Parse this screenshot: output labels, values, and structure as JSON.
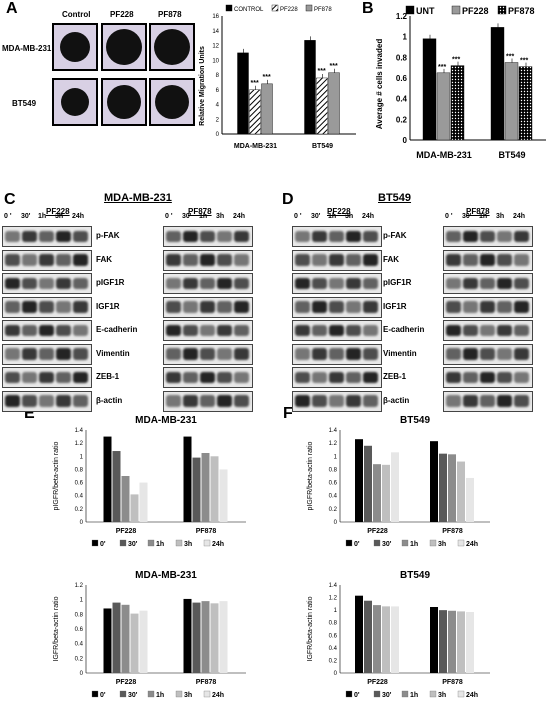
{
  "panels": {
    "A": "A",
    "B": "B",
    "C": "C",
    "D": "D",
    "E": "E",
    "F": "F"
  },
  "panelA": {
    "col_labels": [
      "Control",
      "PF228",
      "PF878"
    ],
    "row_labels": [
      "MDA-MB-231",
      "BT549"
    ]
  },
  "western": {
    "C": {
      "title": "MDA-MB-231",
      "left_drug": "PF228",
      "right_drug": "PF878",
      "time_labels": [
        "0 '",
        "30'",
        "1h",
        "3h",
        "24h"
      ],
      "rows": [
        "p-FAK",
        "FAK",
        "pIGF1R",
        "IGF1R",
        "E-cadherin",
        "Vimentin",
        "ZEB-1",
        "β-actin"
      ]
    },
    "D": {
      "title": "BT549",
      "left_drug": "PF228",
      "right_drug": "PF878",
      "time_labels": [
        "0 '",
        "30'",
        "1h",
        "3h",
        "24h"
      ],
      "rows": [
        "p-FAK",
        "FAK",
        "pIGF1R",
        "IGF1R",
        "E-cadherin",
        "Vimentin",
        "ZEB-1",
        "β-actin"
      ]
    }
  },
  "colors": {
    "c0": "#000000",
    "c1": "#595959",
    "c2": "#8c8c8c",
    "c3": "#bfbfbf",
    "c4": "#e6e6e6",
    "control": "#000000",
    "pf228": "#9a9a9a",
    "pf878": "#9a9a9a"
  },
  "chart_data": [
    {
      "id": "A",
      "type": "bar",
      "categories": [
        "MDA-MB-231",
        "BT549"
      ],
      "series": [
        {
          "name": "CONTROL",
          "values": [
            11,
            12.7
          ]
        },
        {
          "name": "PF228",
          "values": [
            6,
            7.6
          ]
        },
        {
          "name": "PF878",
          "values": [
            6.8,
            8.3
          ]
        }
      ],
      "ylabel": "Relative Migration Units",
      "ylim": [
        0,
        16
      ],
      "ticks": [
        0,
        2,
        4,
        6,
        8,
        10,
        12,
        14,
        16
      ],
      "annotations": [
        "***",
        "***",
        "***",
        "***"
      ],
      "legend": "top"
    },
    {
      "id": "B",
      "type": "bar",
      "categories": [
        "MDA-MB-231",
        "BT549"
      ],
      "series": [
        {
          "name": "UNT",
          "values": [
            0.98,
            1.09
          ]
        },
        {
          "name": "PF228",
          "values": [
            0.65,
            0.75
          ]
        },
        {
          "name": "PF878",
          "values": [
            0.72,
            0.71
          ]
        }
      ],
      "ylabel": "Average # cells invaded",
      "ylim": [
        0,
        1.2
      ],
      "ticks": [
        "0",
        "0.2",
        "0.4",
        "0.6",
        "0.8",
        "1",
        "1.2"
      ],
      "annotations": [
        "***",
        "***",
        "***",
        "***"
      ],
      "legend": "top"
    },
    {
      "id": "E1",
      "type": "bar",
      "title": "MDA-MB-231",
      "categories": [
        "PF228",
        "PF878"
      ],
      "series": [
        {
          "name": "0'",
          "values": [
            1.3,
            1.3
          ]
        },
        {
          "name": "30'",
          "values": [
            1.08,
            0.98
          ]
        },
        {
          "name": "1h",
          "values": [
            0.7,
            1.05
          ]
        },
        {
          "name": "3h",
          "values": [
            0.42,
            1.0
          ]
        },
        {
          "name": "24h",
          "values": [
            0.6,
            0.8
          ]
        }
      ],
      "ylabel": "pIGFR/beta-actin ratio",
      "ylim": [
        0,
        1.4
      ],
      "ticks": [
        "0",
        "0.2",
        "0.4",
        "0.6",
        "0.8",
        "1",
        "1.2",
        "1.4"
      ],
      "legend": "bottom"
    },
    {
      "id": "E2",
      "type": "bar",
      "title": "MDA-MB-231",
      "categories": [
        "PF228",
        "PF878"
      ],
      "series": [
        {
          "name": "0'",
          "values": [
            0.88,
            1.01
          ]
        },
        {
          "name": "30'",
          "values": [
            0.96,
            0.96
          ]
        },
        {
          "name": "1h",
          "values": [
            0.93,
            0.98
          ]
        },
        {
          "name": "3h",
          "values": [
            0.81,
            0.95
          ]
        },
        {
          "name": "24h",
          "values": [
            0.85,
            0.98
          ]
        }
      ],
      "ylabel": "IGFR/beta-actin ratio",
      "ylim": [
        0,
        1.2
      ],
      "ticks": [
        "0",
        "0.2",
        "0.4",
        "0.6",
        "0.8",
        "1",
        "1.2"
      ],
      "legend": "bottom"
    },
    {
      "id": "F1",
      "type": "bar",
      "title": "BT549",
      "categories": [
        "PF228",
        "PF878"
      ],
      "series": [
        {
          "name": "0'",
          "values": [
            1.26,
            1.23
          ]
        },
        {
          "name": "30'",
          "values": [
            1.16,
            1.04
          ]
        },
        {
          "name": "1h",
          "values": [
            0.88,
            1.03
          ]
        },
        {
          "name": "3h",
          "values": [
            0.87,
            0.92
          ]
        },
        {
          "name": "24h",
          "values": [
            1.06,
            0.67
          ]
        }
      ],
      "ylabel": "pIGFR/beta-actin ratio",
      "ylim": [
        0,
        1.4
      ],
      "ticks": [
        "0",
        "0.2",
        "0.4",
        "0.6",
        "0.8",
        "1",
        "1.2",
        "1.4"
      ],
      "legend": "bottom"
    },
    {
      "id": "F2",
      "type": "bar",
      "title": "BT549",
      "categories": [
        "PF228",
        "PF878"
      ],
      "series": [
        {
          "name": "0'",
          "values": [
            1.23,
            1.05
          ]
        },
        {
          "name": "30'",
          "values": [
            1.15,
            1.0
          ]
        },
        {
          "name": "1h",
          "values": [
            1.08,
            0.99
          ]
        },
        {
          "name": "3h",
          "values": [
            1.06,
            0.98
          ]
        },
        {
          "name": "24h",
          "values": [
            1.06,
            0.97
          ]
        }
      ],
      "ylabel": "IGFR/beta-actin ratio",
      "ylim": [
        0,
        1.4
      ],
      "ticks": [
        "0",
        "0.2",
        "0.4",
        "0.6",
        "0.8",
        "1",
        "1.2",
        "1.4"
      ],
      "legend": "bottom"
    }
  ]
}
